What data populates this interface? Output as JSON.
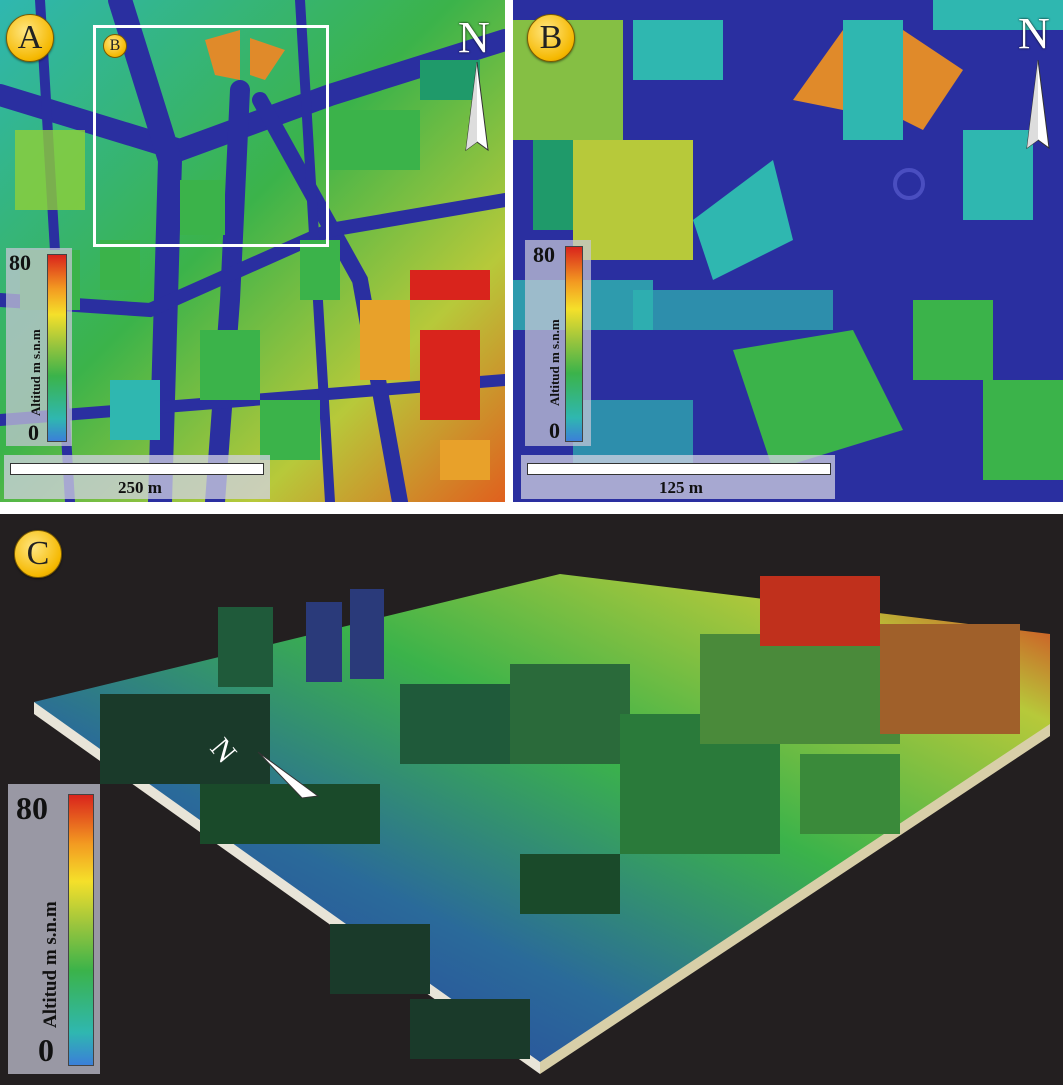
{
  "colors": {
    "low": "#3b7fd8",
    "mid_low": "#2fb7b0",
    "mid": "#3bb34a",
    "mid_high": "#f5e02a",
    "high": "#d9241c",
    "road": "#2a2fa0",
    "background_3d": "#231f20"
  },
  "panels": {
    "a": {
      "label": "A",
      "inset_label": "B",
      "north": "N",
      "legend": {
        "max": "80",
        "min": "0",
        "title": "Altitud m s.n.m"
      },
      "scale": "250 m"
    },
    "b": {
      "label": "B",
      "north": "N",
      "legend": {
        "max": "80",
        "min": "0",
        "title": "Altitud m s.n.m"
      },
      "scale": "125 m"
    },
    "c": {
      "label": "C",
      "north": "N",
      "legend": {
        "max": "80",
        "min": "0",
        "title": "Altitud m s.n.m"
      }
    }
  },
  "icons": {
    "north_arrow": "north-arrow-icon",
    "panel_badge": "circle-badge"
  }
}
